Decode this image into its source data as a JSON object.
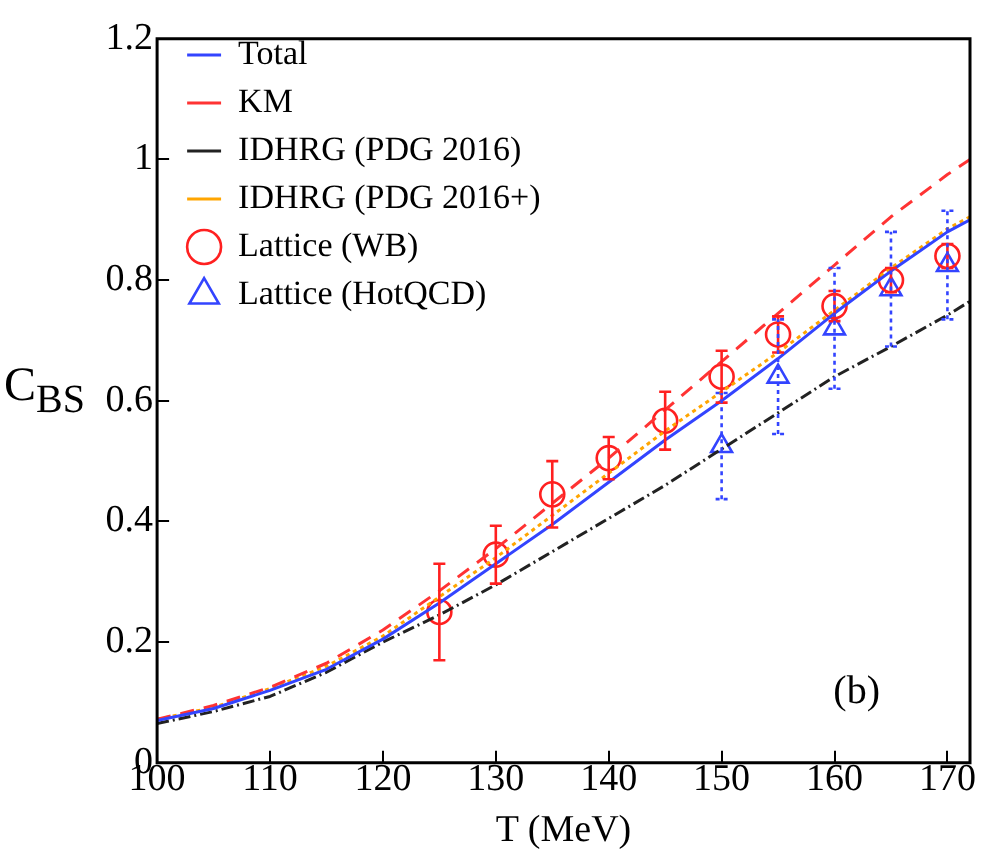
{
  "chart_data": {
    "type": "line",
    "xlabel": "T (MeV)",
    "ylabel": "C$_{BS}$",
    "xlim": [
      100,
      172
    ],
    "xticks": [
      100,
      110,
      120,
      130,
      140,
      150,
      160,
      170
    ],
    "ylim": [
      0,
      1.2
    ],
    "yticks": [
      0,
      0.2,
      0.4,
      0.6,
      0.8,
      1,
      1.2
    ],
    "grid": false,
    "legend": "top left",
    "annotations": [
      "(b)"
    ],
    "series": [
      {
        "name": "Total",
        "type": "line",
        "color": "#3344ff",
        "line_style": "solid",
        "marker": "none",
        "x": [
          100,
          105,
          110,
          115,
          120,
          125,
          130,
          135,
          140,
          145,
          150,
          155,
          160,
          165,
          170,
          172
        ],
        "values": [
          0.07,
          0.09,
          0.12,
          0.155,
          0.205,
          0.265,
          0.33,
          0.395,
          0.465,
          0.535,
          0.6,
          0.67,
          0.745,
          0.815,
          0.88,
          0.9
        ]
      },
      {
        "name": "KM",
        "type": "line",
        "color": "#ff3333",
        "line_style": "dashed",
        "marker": "none",
        "x": [
          100,
          105,
          110,
          115,
          120,
          125,
          130,
          135,
          140,
          145,
          150,
          155,
          160,
          165,
          170,
          172
        ],
        "values": [
          0.072,
          0.095,
          0.125,
          0.165,
          0.22,
          0.285,
          0.355,
          0.43,
          0.505,
          0.585,
          0.665,
          0.745,
          0.825,
          0.905,
          0.975,
          1.0
        ]
      },
      {
        "name": "IDHRG (PDG 2016)",
        "type": "line",
        "color": "#222222",
        "line_style": "dashdot",
        "marker": "none",
        "x": [
          100,
          105,
          110,
          115,
          120,
          125,
          130,
          135,
          140,
          145,
          150,
          155,
          160,
          165,
          170,
          172
        ],
        "values": [
          0.065,
          0.085,
          0.11,
          0.15,
          0.2,
          0.245,
          0.295,
          0.35,
          0.405,
          0.46,
          0.52,
          0.58,
          0.64,
          0.69,
          0.742,
          0.765
        ]
      },
      {
        "name": "IDHRG (PDG 2016+)",
        "type": "line",
        "color": "#ffa500",
        "line_style": "dotted",
        "marker": "none",
        "x": [
          100,
          105,
          110,
          115,
          120,
          125,
          130,
          135,
          140,
          145,
          150,
          155,
          160,
          165,
          170,
          172
        ],
        "values": [
          0.072,
          0.092,
          0.123,
          0.16,
          0.21,
          0.275,
          0.34,
          0.41,
          0.48,
          0.55,
          0.615,
          0.68,
          0.75,
          0.82,
          0.885,
          0.905
        ]
      },
      {
        "name": "Lattice (WB)",
        "type": "scatter",
        "color": "#ff2020",
        "line_style": "solid",
        "marker": "circle",
        "x": [
          125,
          130,
          135,
          140,
          145,
          150,
          155,
          160,
          165,
          170
        ],
        "values": [
          0.25,
          0.345,
          0.445,
          0.505,
          0.567,
          0.64,
          0.71,
          0.757,
          0.8,
          0.84
        ],
        "errors": [
          0.08,
          0.048,
          0.055,
          0.035,
          0.048,
          0.043,
          0.03,
          0.025,
          0.02,
          0.02
        ]
      },
      {
        "name": "Lattice (HotQCD)",
        "type": "scatter",
        "color": "#3344ff",
        "line_style": "dotted",
        "marker": "triangle",
        "x": [
          150,
          155,
          160,
          165,
          170
        ],
        "values": [
          0.525,
          0.64,
          0.72,
          0.785,
          0.825
        ],
        "errors": [
          0.088,
          0.095,
          0.1,
          0.095,
          0.09
        ]
      }
    ]
  }
}
